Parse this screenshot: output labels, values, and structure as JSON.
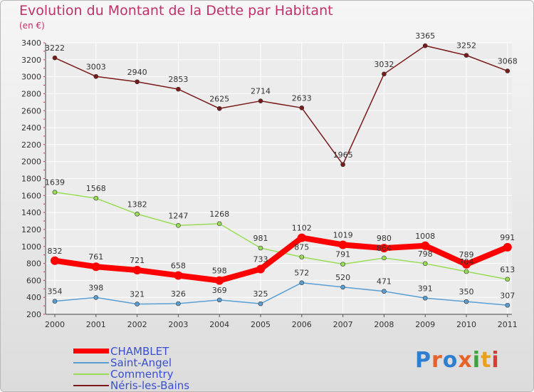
{
  "header": {
    "title": "Evolution du Montant de la Dette par Habitant",
    "subtitle": "(en €)"
  },
  "logo": {
    "text": "Proxiti",
    "colors": [
      "#2f7fd0",
      "#e8632a",
      "#2f7fd0",
      "#e8632a",
      "#3aa33a",
      "#e8a21e",
      "#d93a3a"
    ]
  },
  "chart_data": {
    "type": "line",
    "x": [
      "2000",
      "2001",
      "2002",
      "2003",
      "2004",
      "2005",
      "2006",
      "2007",
      "2008",
      "2009",
      "2010",
      "2011"
    ],
    "ylim": [
      200,
      3400
    ],
    "yticks": [
      200,
      400,
      600,
      800,
      1000,
      1200,
      1400,
      1600,
      1800,
      2000,
      2200,
      2400,
      2600,
      2800,
      3000,
      3200,
      3400
    ],
    "grid": true,
    "legend_position": "bottom-left",
    "series": [
      {
        "name": "CHAMBLET",
        "color": "#ff0000",
        "width": 8,
        "values": [
          832,
          761,
          721,
          658,
          598,
          733,
          1102,
          1019,
          980,
          1008,
          789,
          991
        ]
      },
      {
        "name": "Saint-Angel",
        "color": "#5a9fd4",
        "width": 1.5,
        "values": [
          354,
          398,
          321,
          326,
          369,
          325,
          572,
          520,
          471,
          391,
          350,
          307
        ]
      },
      {
        "name": "Commentry",
        "color": "#99dd55",
        "width": 1.5,
        "values": [
          1639,
          1568,
          1382,
          1247,
          1268,
          981,
          875,
          791,
          864,
          798,
          704,
          613
        ]
      },
      {
        "name": "Néris-les-Bains",
        "color": "#7a1a1a",
        "width": 1.5,
        "values": [
          3222,
          3003,
          2940,
          2853,
          2625,
          2714,
          2633,
          1965,
          3032,
          3365,
          3252,
          3068
        ]
      }
    ]
  }
}
